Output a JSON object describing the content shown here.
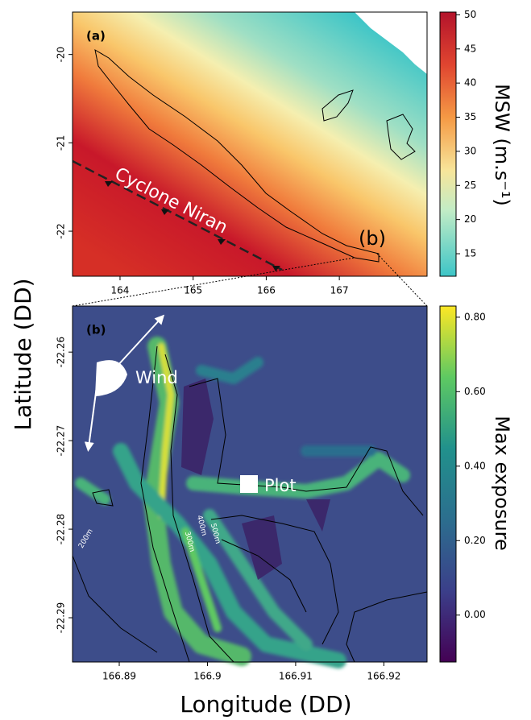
{
  "chart_data": [
    {
      "type": "map",
      "panel_label": "(a)",
      "ylabel": "Latitude (DD)",
      "xlim": [
        163.35,
        168.2
      ],
      "xticks": [
        164,
        165,
        166,
        167
      ],
      "ylim": [
        -22.51,
        -19.52
      ],
      "yticks": [
        -20,
        -21,
        -22
      ],
      "colorbar_label": "MSW (m.s⁻¹)",
      "clim": [
        11.7,
        50.4
      ],
      "cticks": [
        15,
        20,
        25,
        30,
        35,
        40,
        45,
        50
      ],
      "annotations": [
        "Cyclone Niran",
        "(b)"
      ]
    },
    {
      "type": "map",
      "panel_label": "(b)",
      "xlabel": "Longitude (DD)",
      "xlim": [
        166.8847,
        166.9249
      ],
      "xticks": [
        166.89,
        166.9,
        166.91,
        166.92
      ],
      "ylim": [
        -22.295,
        -22.2548
      ],
      "yticks": [
        -22.26,
        -22.27,
        -22.28,
        -22.29
      ],
      "colorbar_label": "Max exposure",
      "clim": [
        -0.126,
        0.83
      ],
      "cticks": [
        {
          "value": 0.8,
          "label": "0.80"
        },
        {
          "value": 0.6,
          "label": "0.60"
        },
        {
          "value": 0.4,
          "label": "0.40"
        },
        {
          "value": 0.2,
          "label": "0.20"
        },
        {
          "value": 0,
          "label": "0.00"
        }
      ],
      "annotations": [
        "Wind",
        "Plot",
        "200m",
        "300m",
        "400m",
        "500m"
      ]
    }
  ]
}
